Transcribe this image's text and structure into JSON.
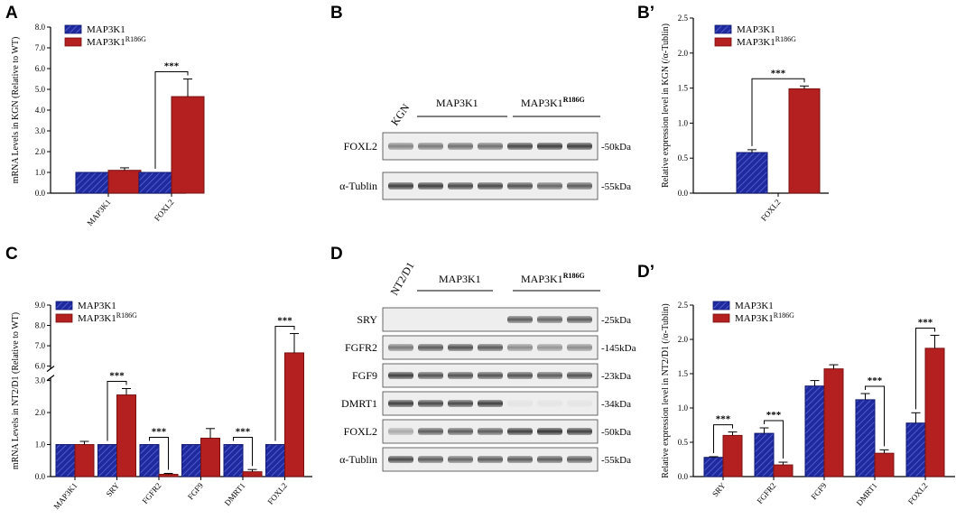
{
  "colors": {
    "blue": "#1f2a9e",
    "red": "#b41f1f",
    "black": "#000000"
  },
  "legend": {
    "series1": "MAP3K1",
    "series2_base": "MAP3K1",
    "series2_sup": "R186G"
  },
  "panels": {
    "A": {
      "label": "A"
    },
    "B": {
      "label": "B",
      "lanes": {
        "kgn": "KGN",
        "wt": "MAP3K1",
        "mut_base": "MAP3K1",
        "mut_sup": "R186G"
      },
      "blots": [
        {
          "name": "FOXL2",
          "kda": "-50kDa"
        },
        {
          "name": "α-Tublin",
          "kda": "-55kDa"
        }
      ]
    },
    "Bp": {
      "label": "B’"
    },
    "C": {
      "label": "C"
    },
    "D": {
      "label": "D",
      "lanes": {
        "kgn": "NT2/D1",
        "wt": "MAP3K1",
        "mut_base": "MAP3K1",
        "mut_sup": "R186G"
      },
      "blots": [
        {
          "name": "SRY",
          "kda": "-25kDa"
        },
        {
          "name": "FGFR2",
          "kda": "-145kDa"
        },
        {
          "name": "FGF9",
          "kda": "-23kDa"
        },
        {
          "name": "DMRT1",
          "kda": "-34kDa"
        },
        {
          "name": "FOXL2",
          "kda": "-50kDa"
        },
        {
          "name": "α-Tublin",
          "kda": "-55kDa"
        }
      ]
    },
    "Dp": {
      "label": "D’"
    }
  },
  "chart_data": [
    {
      "id": "A",
      "type": "bar",
      "ylabel": "mRNA Levels in KGN (Relative to WT)",
      "ylim": [
        0,
        8
      ],
      "yticks": [
        "0.0",
        "1.0",
        "2.0",
        "3.0",
        "4.0",
        "5.0",
        "6.0",
        "7.0",
        "8.0"
      ],
      "categories": [
        "MAP3K1",
        "FOXL2"
      ],
      "series": [
        {
          "name": "MAP3K1",
          "values": [
            1.0,
            1.0
          ],
          "errors": [
            0,
            0
          ]
        },
        {
          "name": "MAP3K1R186G",
          "values": [
            1.1,
            4.65
          ],
          "errors": [
            0.12,
            0.85
          ]
        }
      ],
      "significance": [
        {
          "category": "FOXL2",
          "text": "***"
        }
      ]
    },
    {
      "id": "Bp",
      "type": "bar",
      "ylabel": "Relative expression level in KGN (/α-Tublin)",
      "ylim": [
        0,
        2.5
      ],
      "yticks": [
        "0.0",
        "0.5",
        "1.0",
        "1.5",
        "2.0",
        "2.5"
      ],
      "categories": [
        "FOXL2"
      ],
      "series": [
        {
          "name": "MAP3K1",
          "values": [
            0.58
          ],
          "errors": [
            0.04
          ]
        },
        {
          "name": "MAP3K1R186G",
          "values": [
            1.49
          ],
          "errors": [
            0.04
          ]
        }
      ],
      "significance": [
        {
          "category": "FOXL2",
          "text": "***"
        }
      ]
    },
    {
      "id": "C",
      "type": "bar",
      "ylabel": "mRNA Levels in NT2/D1 (Relative to WT)",
      "ylim": [
        0,
        9
      ],
      "axis_break": [
        3.0,
        6.0
      ],
      "yticks": [
        "0.0",
        "1.0",
        "2.0",
        "3.0",
        "6.0",
        "7.0",
        "8.0",
        "9.0"
      ],
      "categories": [
        "MAP3K1",
        "SRY",
        "FGFR2",
        "FGF9",
        "DMRT1",
        "FOXL2"
      ],
      "series": [
        {
          "name": "MAP3K1",
          "values": [
            1.0,
            1.0,
            1.0,
            1.0,
            1.0,
            1.0
          ],
          "errors": [
            0,
            0,
            0,
            0,
            0,
            0
          ]
        },
        {
          "name": "MAP3K1R186G",
          "values": [
            1.0,
            2.55,
            0.07,
            1.2,
            0.15,
            6.65
          ],
          "errors": [
            0.1,
            0.2,
            0.03,
            0.3,
            0.07,
            0.95
          ]
        }
      ],
      "significance": [
        {
          "category": "SRY",
          "text": "***"
        },
        {
          "category": "FGFR2",
          "text": "***"
        },
        {
          "category": "DMRT1",
          "text": "***"
        },
        {
          "category": "FOXL2",
          "text": "***"
        }
      ]
    },
    {
      "id": "Dp",
      "type": "bar",
      "ylabel": "Relative expression level in NT2/D1 (/α-Tublin)",
      "ylim": [
        0,
        2.5
      ],
      "yticks": [
        "0.0",
        "0.5",
        "1.0",
        "1.5",
        "2.0",
        "2.5"
      ],
      "categories": [
        "SRY",
        "FGFR2",
        "FGF9",
        "DMRT1",
        "FOXL2"
      ],
      "series": [
        {
          "name": "MAP3K1",
          "values": [
            0.28,
            0.63,
            1.32,
            1.12,
            0.78
          ],
          "errors": [
            0.01,
            0.08,
            0.08,
            0.09,
            0.15
          ]
        },
        {
          "name": "MAP3K1R186G",
          "values": [
            0.6,
            0.17,
            1.57,
            0.34,
            1.87
          ],
          "errors": [
            0.05,
            0.04,
            0.06,
            0.05,
            0.19
          ]
        }
      ],
      "significance": [
        {
          "category": "SRY",
          "text": "***"
        },
        {
          "category": "FGFR2",
          "text": "***"
        },
        {
          "category": "DMRT1",
          "text": "***"
        },
        {
          "category": "FOXL2",
          "text": "***"
        }
      ]
    }
  ]
}
